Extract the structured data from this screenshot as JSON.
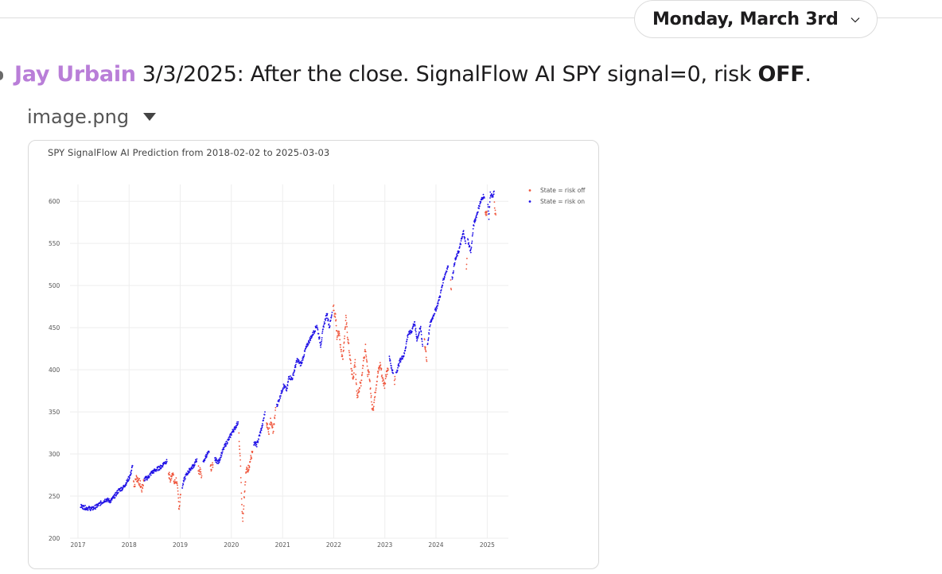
{
  "date_divider": {
    "label": "Monday, March 3rd"
  },
  "message": {
    "author": "Jay Urbain",
    "text_before": "3/3/2025: After the close. SignalFlow AI SPY signal=0, risk ",
    "text_bold": "OFF",
    "text_after": "."
  },
  "attachment": {
    "filename": "image.png"
  },
  "chart_data": {
    "type": "scatter",
    "title": "SPY SignalFlow AI Prediction from 2018-02-02 to 2025-03-03",
    "xlabel": "",
    "ylabel": "",
    "x_ticks": [
      "2017",
      "2018",
      "2019",
      "2020",
      "2021",
      "2022",
      "2023",
      "2024",
      "2025"
    ],
    "y_ticks": [
      200,
      250,
      300,
      350,
      400,
      450,
      500,
      550,
      600
    ],
    "xlim": [
      "2017-01-01",
      "2025-06-01"
    ],
    "ylim": [
      200,
      620
    ],
    "grid": true,
    "legend_position": "top-right",
    "colors": {
      "risk_off": "#ef553b",
      "risk_on": "#1f10e6"
    },
    "series": [
      {
        "name": "State = risk off",
        "color_key": "risk_off",
        "segments": [
          [
            [
              "2018-02-02",
              268
            ],
            [
              "2018-02-09",
              262
            ],
            [
              "2018-02-20",
              272
            ],
            [
              "2018-03-05",
              270
            ],
            [
              "2018-03-20",
              265
            ],
            [
              "2018-04-02",
              258
            ],
            [
              "2018-04-16",
              268
            ]
          ],
          [
            [
              "2018-10-10",
              278
            ],
            [
              "2018-10-24",
              268
            ],
            [
              "2018-11-07",
              280
            ],
            [
              "2018-11-20",
              265
            ],
            [
              "2018-12-05",
              270
            ],
            [
              "2018-12-17",
              250
            ],
            [
              "2018-12-24",
              236
            ],
            [
              "2019-01-04",
              252
            ]
          ],
          [
            [
              "2019-05-10",
              282
            ],
            [
              "2019-05-28",
              278
            ],
            [
              "2019-06-03",
              274
            ]
          ],
          [
            [
              "2019-08-05",
              283
            ],
            [
              "2019-08-14",
              285
            ],
            [
              "2019-08-23",
              287
            ]
          ],
          [
            [
              "2020-02-24",
              322
            ],
            [
              "2020-03-02",
              305
            ],
            [
              "2020-03-09",
              275
            ],
            [
              "2020-03-16",
              240
            ],
            [
              "2020-03-23",
              222
            ],
            [
              "2020-04-01",
              248
            ],
            [
              "2020-04-15",
              279
            ],
            [
              "2020-05-01",
              283
            ],
            [
              "2020-05-15",
              292
            ],
            [
              "2020-06-01",
              303
            ]
          ],
          [
            [
              "2020-09-08",
              333
            ],
            [
              "2020-09-18",
              331
            ],
            [
              "2020-09-24",
              320
            ],
            [
              "2020-10-05",
              339
            ],
            [
              "2020-10-28",
              327
            ],
            [
              "2020-11-04",
              342
            ],
            [
              "2020-11-12",
              355
            ]
          ],
          [
            [
              "2021-12-28",
              477
            ],
            [
              "2022-01-05",
              468
            ],
            [
              "2022-01-14",
              464
            ],
            [
              "2022-01-24",
              439
            ],
            [
              "2022-02-08",
              447
            ],
            [
              "2022-02-23",
              421
            ],
            [
              "2022-03-08",
              416
            ],
            [
              "2022-03-29",
              461
            ],
            [
              "2022-04-11",
              439
            ],
            [
              "2022-04-26",
              416
            ],
            [
              "2022-05-09",
              398
            ],
            [
              "2022-05-20",
              389
            ],
            [
              "2022-06-03",
              411
            ],
            [
              "2022-06-16",
              366
            ],
            [
              "2022-06-30",
              377
            ],
            [
              "2022-07-15",
              385
            ],
            [
              "2022-08-01",
              410
            ],
            [
              "2022-08-16",
              429
            ],
            [
              "2022-08-30",
              397
            ],
            [
              "2022-09-13",
              393
            ],
            [
              "2022-09-30",
              357
            ],
            [
              "2022-10-12",
              356
            ],
            [
              "2022-10-27",
              377
            ],
            [
              "2022-11-10",
              394
            ],
            [
              "2022-11-30",
              407
            ],
            [
              "2022-12-15",
              389
            ],
            [
              "2022-12-30",
              382
            ],
            [
              "2023-01-13",
              398
            ],
            [
              "2023-01-25",
              400
            ]
          ],
          [
            [
              "2023-03-10",
              385
            ],
            [
              "2023-03-15",
              389
            ]
          ],
          [
            [
              "2023-10-10",
              434
            ],
            [
              "2023-10-20",
              421
            ],
            [
              "2023-10-27",
              410
            ]
          ],
          [
            [
              "2024-04-15",
              504
            ],
            [
              "2024-04-19",
              495
            ]
          ],
          [
            [
              "2024-08-05",
              517
            ],
            [
              "2024-08-09",
              532
            ]
          ],
          [
            [
              "2024-12-18",
              586
            ],
            [
              "2024-12-30",
              588
            ]
          ],
          [
            [
              "2025-02-21",
              599
            ],
            [
              "2025-02-27",
              585
            ],
            [
              "2025-03-03",
              584
            ]
          ]
        ]
      },
      {
        "name": "State = risk on",
        "color_key": "risk_on",
        "segments": [
          [
            [
              "2017-01-20",
              238
            ],
            [
              "2017-03-01",
              236
            ],
            [
              "2017-04-14",
              235
            ],
            [
              "2017-05-15",
              238
            ],
            [
              "2017-06-15",
              242
            ],
            [
              "2017-07-20",
              246
            ],
            [
              "2017-08-21",
              244
            ],
            [
              "2017-09-20",
              250
            ],
            [
              "2017-10-20",
              257
            ],
            [
              "2017-11-20",
              260
            ],
            [
              "2017-12-20",
              268
            ],
            [
              "2018-01-10",
              275
            ],
            [
              "2018-01-26",
              286
            ]
          ],
          [
            [
              "2018-04-20",
              270
            ],
            [
              "2018-05-15",
              272
            ],
            [
              "2018-06-12",
              278
            ],
            [
              "2018-07-20",
              282
            ],
            [
              "2018-08-20",
              285
            ],
            [
              "2018-09-10",
              290
            ],
            [
              "2018-09-28",
              291
            ]
          ],
          [
            [
              "2019-01-15",
              260
            ],
            [
              "2019-02-01",
              271
            ],
            [
              "2019-02-20",
              277
            ],
            [
              "2019-03-15",
              282
            ],
            [
              "2019-04-10",
              287
            ],
            [
              "2019-04-30",
              294
            ]
          ],
          [
            [
              "2019-06-14",
              289
            ],
            [
              "2019-07-05",
              298
            ],
            [
              "2019-07-26",
              302
            ]
          ],
          [
            [
              "2019-09-05",
              294
            ],
            [
              "2019-10-01",
              290
            ],
            [
              "2019-10-25",
              301
            ],
            [
              "2019-11-20",
              311
            ],
            [
              "2019-12-15",
              318
            ],
            [
              "2020-01-10",
              327
            ],
            [
              "2020-01-24",
              330
            ],
            [
              "2020-02-19",
              338
            ]
          ],
          [
            [
              "2020-06-10",
              313
            ],
            [
              "2020-07-01",
              311
            ],
            [
              "2020-07-20",
              322
            ],
            [
              "2020-08-10",
              334
            ],
            [
              "2020-08-28",
              350
            ]
          ],
          [
            [
              "2020-11-20",
              357
            ],
            [
              "2020-12-10",
              366
            ],
            [
              "2021-01-08",
              381
            ],
            [
              "2021-02-01",
              376
            ],
            [
              "2021-02-15",
              392
            ],
            [
              "2021-03-10",
              389
            ],
            [
              "2021-04-15",
              412
            ],
            [
              "2021-05-12",
              406
            ],
            [
              "2021-06-15",
              425
            ],
            [
              "2021-07-15",
              436
            ],
            [
              "2021-08-16",
              446
            ],
            [
              "2021-09-02",
              453
            ],
            [
              "2021-09-30",
              429
            ],
            [
              "2021-10-22",
              453
            ],
            [
              "2021-11-15",
              467
            ],
            [
              "2021-12-01",
              450
            ],
            [
              "2021-12-20",
              468
            ]
          ],
          [
            [
              "2023-02-02",
              416
            ],
            [
              "2023-02-22",
              398
            ],
            [
              "2023-03-02",
              396
            ]
          ],
          [
            [
              "2023-03-22",
              396
            ],
            [
              "2023-04-20",
              411
            ],
            [
              "2023-05-19",
              418
            ],
            [
              "2023-06-15",
              442
            ],
            [
              "2023-07-12",
              446
            ],
            [
              "2023-07-31",
              457
            ],
            [
              "2023-08-18",
              436
            ],
            [
              "2023-09-14",
              450
            ],
            [
              "2023-09-28",
              428
            ]
          ],
          [
            [
              "2023-11-02",
              430
            ],
            [
              "2023-11-20",
              454
            ],
            [
              "2023-12-12",
              464
            ],
            [
              "2024-01-10",
              476
            ],
            [
              "2024-02-01",
              489
            ],
            [
              "2024-02-23",
              507
            ],
            [
              "2024-03-20",
              520
            ],
            [
              "2024-03-28",
              523
            ]
          ],
          [
            [
              "2024-04-25",
              508
            ],
            [
              "2024-05-15",
              529
            ],
            [
              "2024-06-12",
              541
            ],
            [
              "2024-07-16",
              564
            ],
            [
              "2024-07-31",
              550
            ]
          ],
          [
            [
              "2024-08-15",
              554
            ],
            [
              "2024-09-06",
              540
            ],
            [
              "2024-09-26",
              572
            ],
            [
              "2024-10-18",
              584
            ],
            [
              "2024-11-11",
              598
            ],
            [
              "2024-12-06",
              607
            ],
            [
              "2024-12-12",
              604
            ]
          ],
          [
            [
              "2025-01-06",
              595
            ],
            [
              "2025-01-13",
              581
            ],
            [
              "2025-01-23",
              609
            ],
            [
              "2025-02-10",
              604
            ],
            [
              "2025-02-19",
              612
            ]
          ]
        ]
      }
    ]
  }
}
